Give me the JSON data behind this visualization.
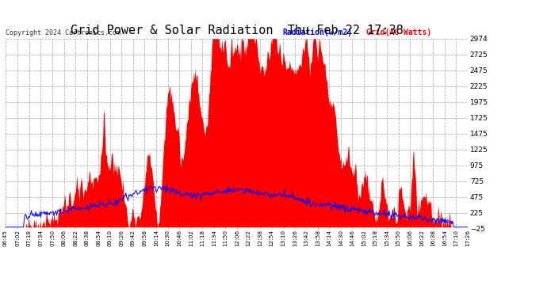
{
  "title": "Grid Power & Solar Radiation  Thu Feb 22 17:38",
  "copyright": "Copyright 2024 Cartronics.com",
  "legend_radiation": "Radiation(w/m2)",
  "legend_grid": "Grid(AC Watts)",
  "yticks": [
    2974.5,
    2724.6,
    2474.6,
    2224.7,
    1974.7,
    1724.7,
    1474.8,
    1224.8,
    974.9,
    724.9,
    475.0,
    225.0,
    -25.0
  ],
  "ymin": -25.0,
  "ymax": 2974.5,
  "background_color": "#ffffff",
  "plot_bg_color": "#ffffff",
  "grid_color": "#aaaaaa",
  "radiation_color": "#0000ff",
  "grid_power_color": "#ff0000",
  "title_color": "#000000",
  "copyright_color": "#000000"
}
